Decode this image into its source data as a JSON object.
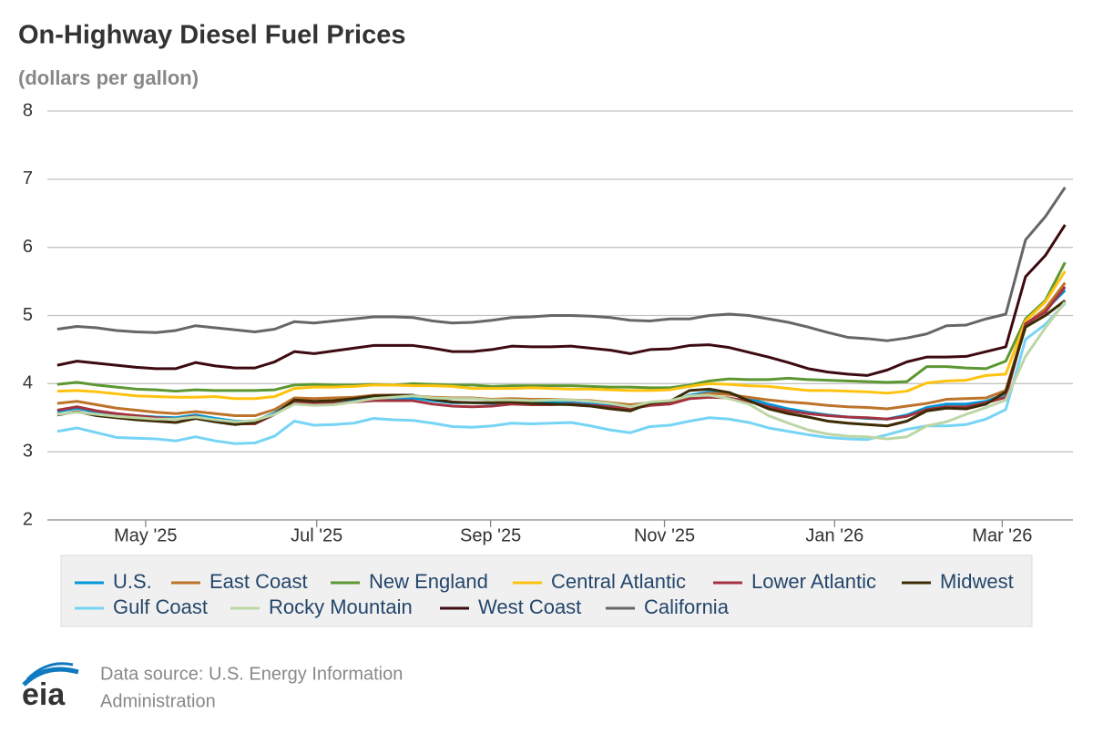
{
  "chart_data": {
    "type": "line",
    "title": "On-Highway Diesel Fuel Prices",
    "subtitle": "(dollars per gallon)",
    "x": [
      0,
      1,
      2,
      3,
      4,
      5,
      6,
      7,
      8,
      9,
      10,
      11,
      12,
      13,
      14,
      15,
      16,
      17,
      18,
      19,
      20,
      21,
      22,
      23,
      24,
      25,
      26,
      27,
      28,
      29,
      30,
      31,
      32,
      33,
      34,
      35,
      36,
      37,
      38,
      39,
      40,
      41,
      42,
      43,
      44,
      45,
      46,
      47,
      48,
      49,
      50,
      51
    ],
    "xlim": [
      -0.5,
      51.4
    ],
    "xticks": [
      {
        "value": 4.47,
        "label": "May '25"
      },
      {
        "value": 13.13,
        "label": "Jul '25"
      },
      {
        "value": 21.93,
        "label": "Sep '25"
      },
      {
        "value": 30.73,
        "label": "Nov '25"
      },
      {
        "value": 39.34,
        "label": "Jan '26"
      },
      {
        "value": 47.82,
        "label": "Mar '26"
      }
    ],
    "ylim": [
      2,
      8
    ],
    "yticks": [
      2,
      3,
      4,
      5,
      6,
      7,
      8
    ],
    "grid": true,
    "legend": "bottom",
    "series": [
      {
        "name": "U.S.",
        "color": "#0096d7",
        "values": [
          3.59,
          3.64,
          3.58,
          3.55,
          3.53,
          3.51,
          3.5,
          3.54,
          3.49,
          3.45,
          3.45,
          3.57,
          3.75,
          3.73,
          3.74,
          3.76,
          3.79,
          3.79,
          3.79,
          3.75,
          3.72,
          3.72,
          3.71,
          3.73,
          3.72,
          3.73,
          3.72,
          3.7,
          3.67,
          3.63,
          3.7,
          3.73,
          3.83,
          3.88,
          3.86,
          3.78,
          3.7,
          3.63,
          3.58,
          3.54,
          3.51,
          3.49,
          3.48,
          3.54,
          3.65,
          3.7,
          3.7,
          3.74,
          3.85,
          4.86,
          5.08,
          5.37
        ]
      },
      {
        "name": "East Coast",
        "color": "#bd732a",
        "values": [
          3.71,
          3.74,
          3.69,
          3.64,
          3.61,
          3.58,
          3.56,
          3.59,
          3.56,
          3.53,
          3.53,
          3.62,
          3.79,
          3.78,
          3.79,
          3.8,
          3.83,
          3.83,
          3.82,
          3.8,
          3.79,
          3.79,
          3.77,
          3.78,
          3.77,
          3.77,
          3.76,
          3.75,
          3.72,
          3.69,
          3.72,
          3.74,
          3.81,
          3.86,
          3.84,
          3.8,
          3.76,
          3.73,
          3.71,
          3.68,
          3.66,
          3.65,
          3.63,
          3.67,
          3.71,
          3.77,
          3.78,
          3.79,
          3.9,
          4.87,
          5.1,
          5.48
        ]
      },
      {
        "name": "New England",
        "color": "#5d9732",
        "values": [
          3.99,
          4.02,
          3.98,
          3.95,
          3.92,
          3.91,
          3.89,
          3.91,
          3.9,
          3.9,
          3.9,
          3.91,
          3.98,
          3.99,
          3.98,
          3.98,
          3.99,
          3.98,
          4.0,
          3.99,
          3.98,
          3.98,
          3.96,
          3.97,
          3.97,
          3.97,
          3.97,
          3.96,
          3.95,
          3.95,
          3.94,
          3.94,
          3.98,
          4.04,
          4.07,
          4.06,
          4.06,
          4.08,
          4.06,
          4.05,
          4.04,
          4.03,
          4.02,
          4.03,
          4.25,
          4.25,
          4.23,
          4.22,
          4.33,
          4.95,
          5.22,
          5.78
        ]
      },
      {
        "name": "Central Atlantic",
        "color": "#ffc20e",
        "values": [
          3.89,
          3.9,
          3.88,
          3.85,
          3.82,
          3.81,
          3.8,
          3.8,
          3.81,
          3.78,
          3.78,
          3.81,
          3.93,
          3.95,
          3.95,
          3.96,
          3.98,
          3.98,
          3.97,
          3.97,
          3.96,
          3.93,
          3.93,
          3.93,
          3.94,
          3.93,
          3.92,
          3.92,
          3.91,
          3.9,
          3.9,
          3.91,
          3.96,
          4.0,
          3.99,
          3.97,
          3.96,
          3.93,
          3.9,
          3.9,
          3.89,
          3.88,
          3.86,
          3.89,
          4.01,
          4.04,
          4.05,
          4.12,
          4.14,
          4.92,
          5.2,
          5.65
        ]
      },
      {
        "name": "Lower Atlantic",
        "color": "#a33340",
        "values": [
          3.61,
          3.66,
          3.6,
          3.56,
          3.53,
          3.5,
          3.48,
          3.52,
          3.45,
          3.41,
          3.41,
          3.55,
          3.73,
          3.71,
          3.71,
          3.73,
          3.75,
          3.75,
          3.75,
          3.7,
          3.67,
          3.66,
          3.67,
          3.7,
          3.69,
          3.69,
          3.7,
          3.68,
          3.66,
          3.63,
          3.68,
          3.7,
          3.78,
          3.8,
          3.79,
          3.74,
          3.66,
          3.6,
          3.56,
          3.53,
          3.51,
          3.5,
          3.48,
          3.52,
          3.62,
          3.66,
          3.66,
          3.72,
          3.8,
          4.88,
          5.05,
          5.42
        ]
      },
      {
        "name": "Midwest",
        "color": "#3c2b05",
        "values": [
          3.54,
          3.59,
          3.53,
          3.5,
          3.47,
          3.45,
          3.43,
          3.49,
          3.44,
          3.4,
          3.43,
          3.55,
          3.76,
          3.74,
          3.75,
          3.78,
          3.82,
          3.83,
          3.83,
          3.77,
          3.73,
          3.72,
          3.72,
          3.73,
          3.71,
          3.7,
          3.69,
          3.67,
          3.63,
          3.6,
          3.71,
          3.74,
          3.9,
          3.92,
          3.87,
          3.75,
          3.63,
          3.56,
          3.51,
          3.45,
          3.42,
          3.4,
          3.38,
          3.45,
          3.6,
          3.64,
          3.63,
          3.7,
          3.88,
          4.83,
          5.0,
          5.22
        ]
      },
      {
        "name": "Gulf Coast",
        "color": "#76d4f5",
        "values": [
          3.3,
          3.35,
          3.28,
          3.21,
          3.2,
          3.19,
          3.16,
          3.22,
          3.16,
          3.12,
          3.13,
          3.23,
          3.45,
          3.39,
          3.4,
          3.42,
          3.49,
          3.47,
          3.46,
          3.42,
          3.37,
          3.36,
          3.38,
          3.42,
          3.41,
          3.42,
          3.43,
          3.38,
          3.32,
          3.28,
          3.37,
          3.39,
          3.45,
          3.5,
          3.48,
          3.43,
          3.35,
          3.3,
          3.25,
          3.21,
          3.19,
          3.18,
          3.25,
          3.33,
          3.38,
          3.38,
          3.4,
          3.48,
          3.62,
          4.65,
          4.87,
          5.18
        ]
      },
      {
        "name": "Rocky Mountain",
        "color": "#bdd6a5",
        "values": [
          3.55,
          3.58,
          3.55,
          3.52,
          3.5,
          3.48,
          3.48,
          3.51,
          3.47,
          3.44,
          3.46,
          3.55,
          3.7,
          3.68,
          3.69,
          3.73,
          3.78,
          3.8,
          3.82,
          3.79,
          3.78,
          3.78,
          3.76,
          3.76,
          3.75,
          3.76,
          3.76,
          3.74,
          3.71,
          3.66,
          3.73,
          3.75,
          3.82,
          3.83,
          3.78,
          3.7,
          3.53,
          3.42,
          3.32,
          3.26,
          3.23,
          3.22,
          3.19,
          3.22,
          3.38,
          3.44,
          3.55,
          3.65,
          3.76,
          4.4,
          4.82,
          5.2
        ]
      },
      {
        "name": "West Coast",
        "color": "#3c0a10",
        "values": [
          4.27,
          4.33,
          4.3,
          4.27,
          4.24,
          4.22,
          4.22,
          4.31,
          4.26,
          4.23,
          4.23,
          4.32,
          4.47,
          4.44,
          4.48,
          4.52,
          4.56,
          4.56,
          4.56,
          4.52,
          4.47,
          4.47,
          4.5,
          4.55,
          4.54,
          4.54,
          4.55,
          4.52,
          4.49,
          4.44,
          4.5,
          4.51,
          4.56,
          4.57,
          4.53,
          4.46,
          4.39,
          4.31,
          4.22,
          4.17,
          4.14,
          4.12,
          4.2,
          4.32,
          4.39,
          4.39,
          4.4,
          4.47,
          4.54,
          5.57,
          5.88,
          6.33
        ]
      },
      {
        "name": "California",
        "color": "#666666",
        "values": [
          4.8,
          4.84,
          4.82,
          4.78,
          4.76,
          4.75,
          4.78,
          4.85,
          4.82,
          4.79,
          4.76,
          4.8,
          4.91,
          4.89,
          4.92,
          4.95,
          4.98,
          4.98,
          4.97,
          4.92,
          4.89,
          4.9,
          4.93,
          4.97,
          4.98,
          5.0,
          5.0,
          4.99,
          4.97,
          4.93,
          4.92,
          4.95,
          4.95,
          5.0,
          5.02,
          5.0,
          4.95,
          4.9,
          4.83,
          4.75,
          4.68,
          4.66,
          4.63,
          4.67,
          4.73,
          4.85,
          4.86,
          4.95,
          5.02,
          6.11,
          6.45,
          6.88
        ]
      }
    ]
  },
  "footer": {
    "logo": "eia",
    "source_lines": [
      "Data source: U.S. Energy Information",
      "Administration"
    ]
  }
}
